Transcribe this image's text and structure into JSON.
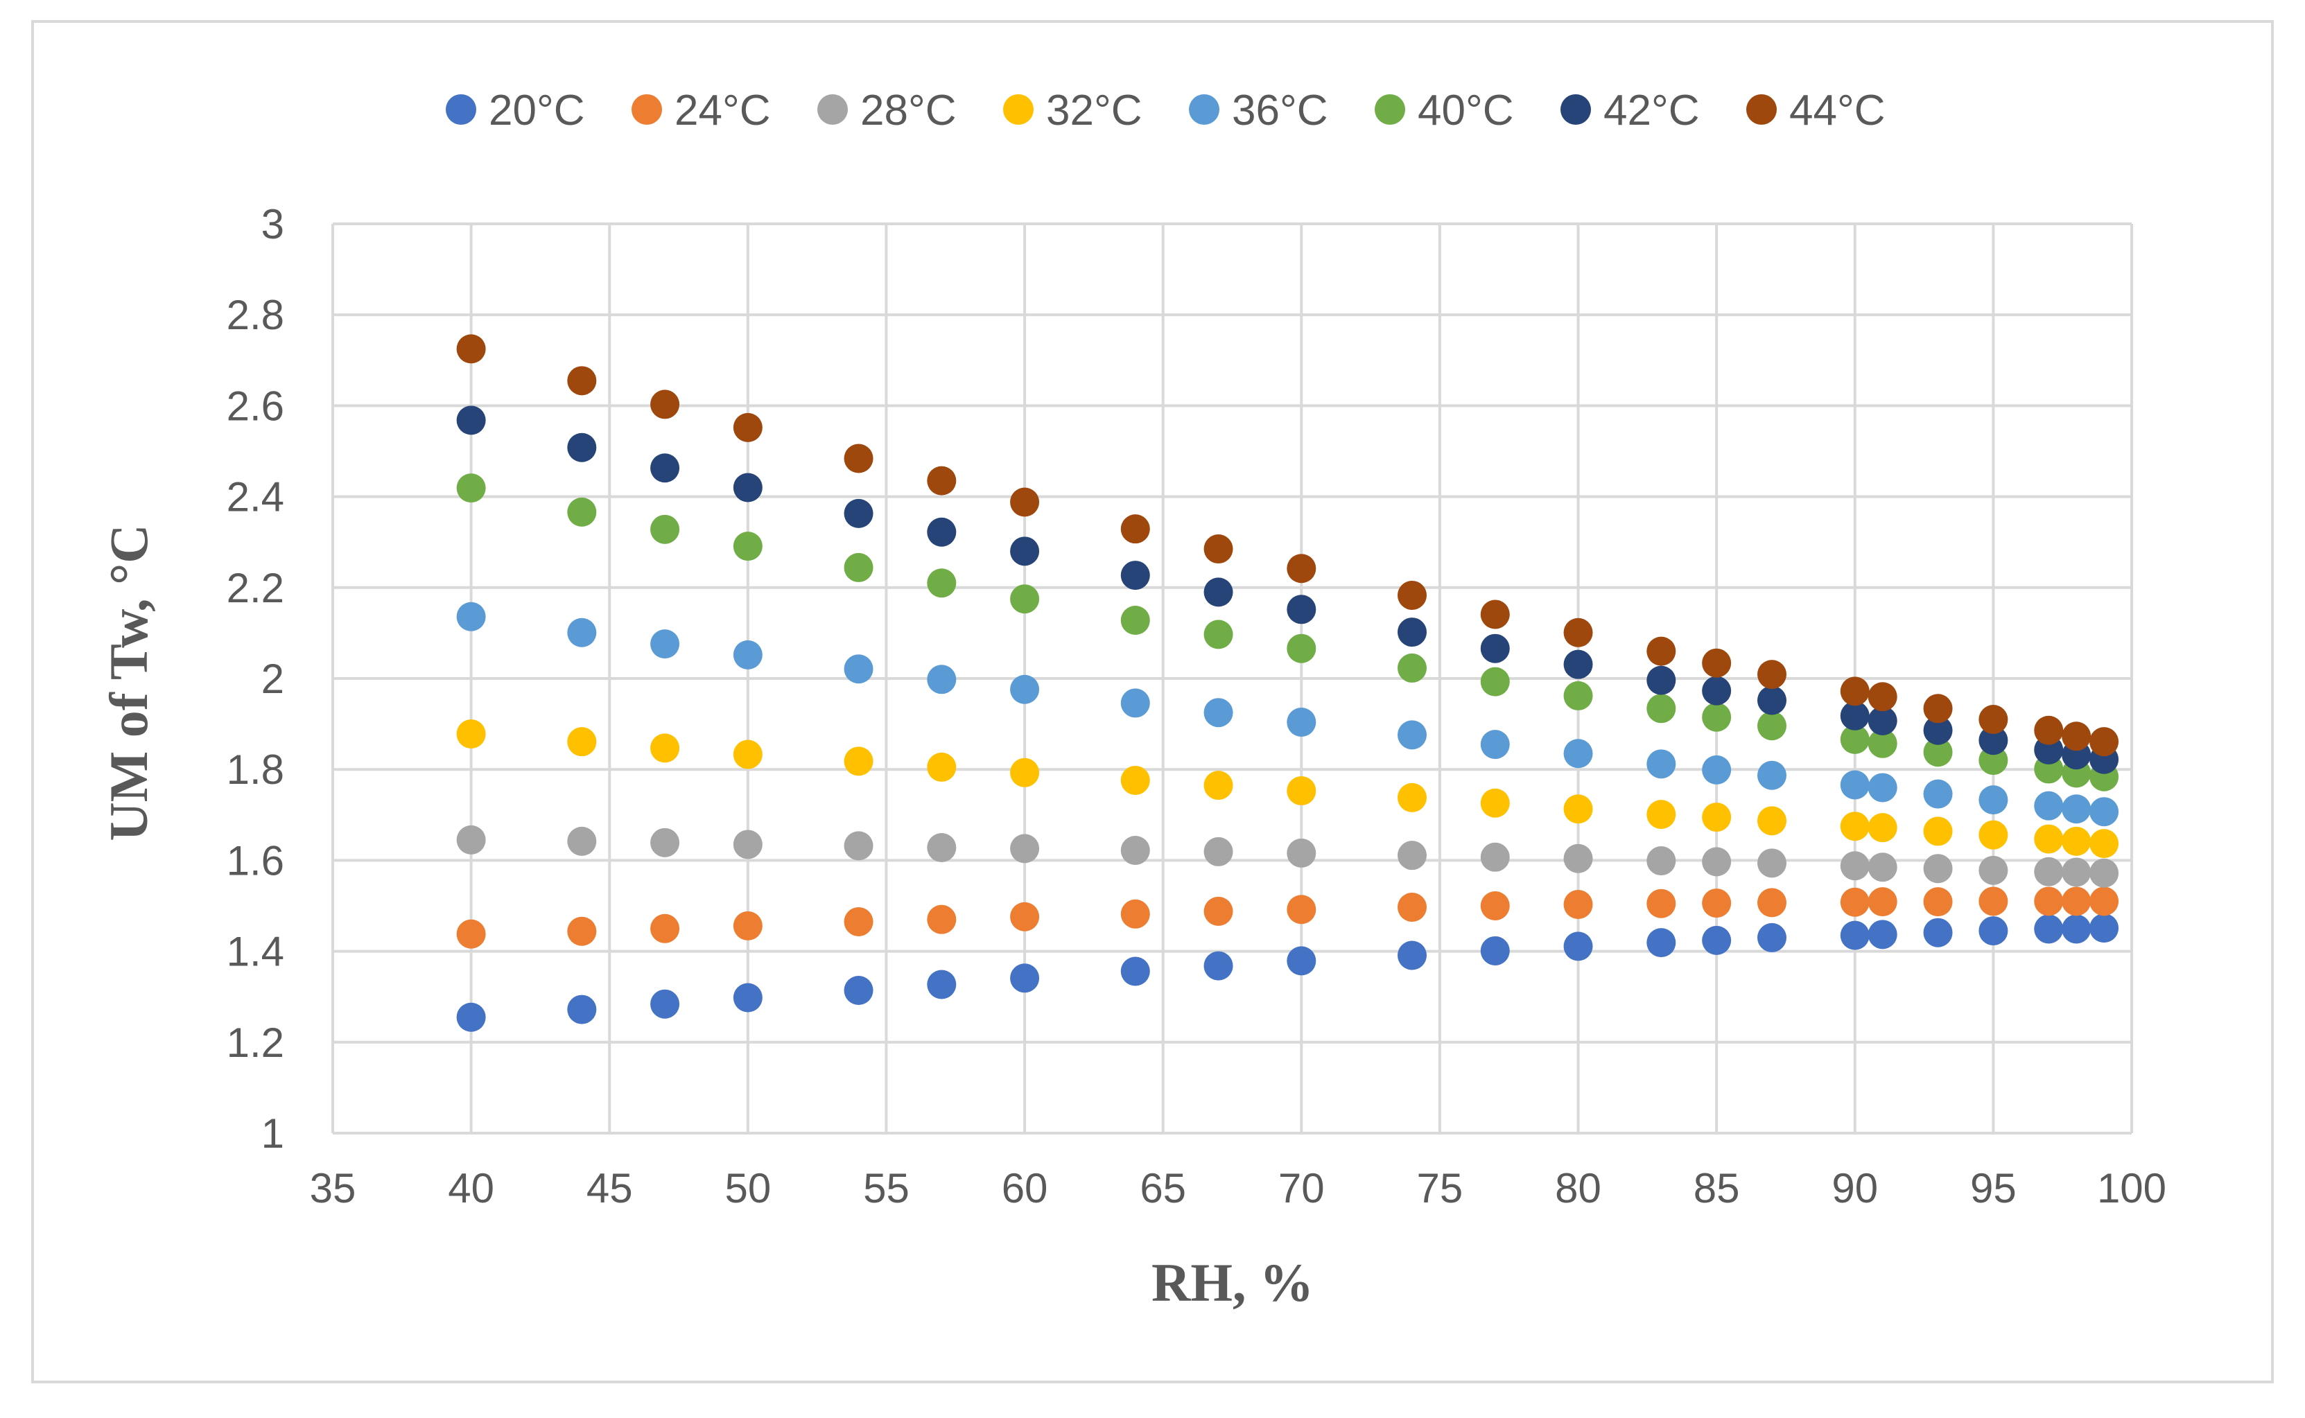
{
  "chart_data": {
    "type": "scatter",
    "title": "",
    "xlabel": "RH, %",
    "ylabel": "UM of Tw, °C",
    "xlim": [
      35,
      100
    ],
    "ylim": [
      1,
      3
    ],
    "x_ticks": [
      "35",
      "40",
      "45",
      "50",
      "55",
      "60",
      "65",
      "70",
      "75",
      "80",
      "85",
      "90",
      "95",
      "100"
    ],
    "y_ticks": [
      "1",
      "1.2",
      "1.4",
      "1.6",
      "1.8",
      "2",
      "2.2",
      "2.4",
      "2.6",
      "2.8",
      "3"
    ],
    "grid": true,
    "legend_position": "top",
    "x": [
      40,
      44,
      47,
      50,
      54,
      57,
      60,
      64,
      67,
      70,
      74,
      77,
      80,
      83,
      85,
      87,
      90,
      91,
      93,
      95,
      97,
      98,
      99
    ],
    "series": [
      {
        "name": "20°C",
        "color": "#4472c4",
        "values": [
          1.255,
          1.272,
          1.284,
          1.298,
          1.314,
          1.327,
          1.341,
          1.356,
          1.368,
          1.379,
          1.391,
          1.401,
          1.411,
          1.419,
          1.424,
          1.43,
          1.435,
          1.437,
          1.441,
          1.445,
          1.449,
          1.449,
          1.451
        ]
      },
      {
        "name": "24°C",
        "color": "#ed7d31",
        "values": [
          1.438,
          1.444,
          1.45,
          1.456,
          1.465,
          1.47,
          1.476,
          1.482,
          1.488,
          1.492,
          1.497,
          1.5,
          1.503,
          1.505,
          1.506,
          1.507,
          1.508,
          1.509,
          1.509,
          1.51,
          1.51,
          1.51,
          1.51
        ]
      },
      {
        "name": "28°C",
        "color": "#a5a5a5",
        "values": [
          1.645,
          1.642,
          1.639,
          1.635,
          1.632,
          1.628,
          1.626,
          1.622,
          1.619,
          1.616,
          1.611,
          1.607,
          1.604,
          1.599,
          1.597,
          1.594,
          1.588,
          1.585,
          1.582,
          1.578,
          1.575,
          1.574,
          1.572
        ]
      },
      {
        "name": "32°C",
        "color": "#ffc000",
        "values": [
          1.878,
          1.861,
          1.847,
          1.833,
          1.818,
          1.805,
          1.793,
          1.776,
          1.765,
          1.753,
          1.738,
          1.726,
          1.713,
          1.701,
          1.695,
          1.687,
          1.675,
          1.672,
          1.664,
          1.656,
          1.647,
          1.642,
          1.637
        ]
      },
      {
        "name": "36°C",
        "color": "#5b9bd5",
        "values": [
          2.136,
          2.101,
          2.076,
          2.052,
          2.021,
          1.998,
          1.976,
          1.946,
          1.925,
          1.904,
          1.876,
          1.855,
          1.835,
          1.812,
          1.799,
          1.787,
          1.766,
          1.76,
          1.746,
          1.733,
          1.72,
          1.713,
          1.707
        ]
      },
      {
        "name": "40°C",
        "color": "#70ad47",
        "values": [
          2.419,
          2.366,
          2.328,
          2.291,
          2.244,
          2.21,
          2.175,
          2.128,
          2.097,
          2.066,
          2.023,
          1.993,
          1.962,
          1.934,
          1.915,
          1.896,
          1.866,
          1.857,
          1.838,
          1.82,
          1.801,
          1.792,
          1.784
        ]
      },
      {
        "name": "42°C",
        "color": "#264478",
        "values": [
          2.568,
          2.508,
          2.463,
          2.42,
          2.363,
          2.322,
          2.28,
          2.227,
          2.19,
          2.152,
          2.102,
          2.066,
          2.031,
          1.996,
          1.973,
          1.952,
          1.918,
          1.907,
          1.886,
          1.864,
          1.843,
          1.832,
          1.822
        ]
      },
      {
        "name": "44°C",
        "color": "#9e480e",
        "values": [
          2.725,
          2.655,
          2.603,
          2.552,
          2.484,
          2.435,
          2.388,
          2.329,
          2.285,
          2.242,
          2.183,
          2.141,
          2.101,
          2.06,
          2.034,
          2.009,
          1.972,
          1.96,
          1.934,
          1.91,
          1.886,
          1.873,
          1.861
        ]
      }
    ]
  }
}
